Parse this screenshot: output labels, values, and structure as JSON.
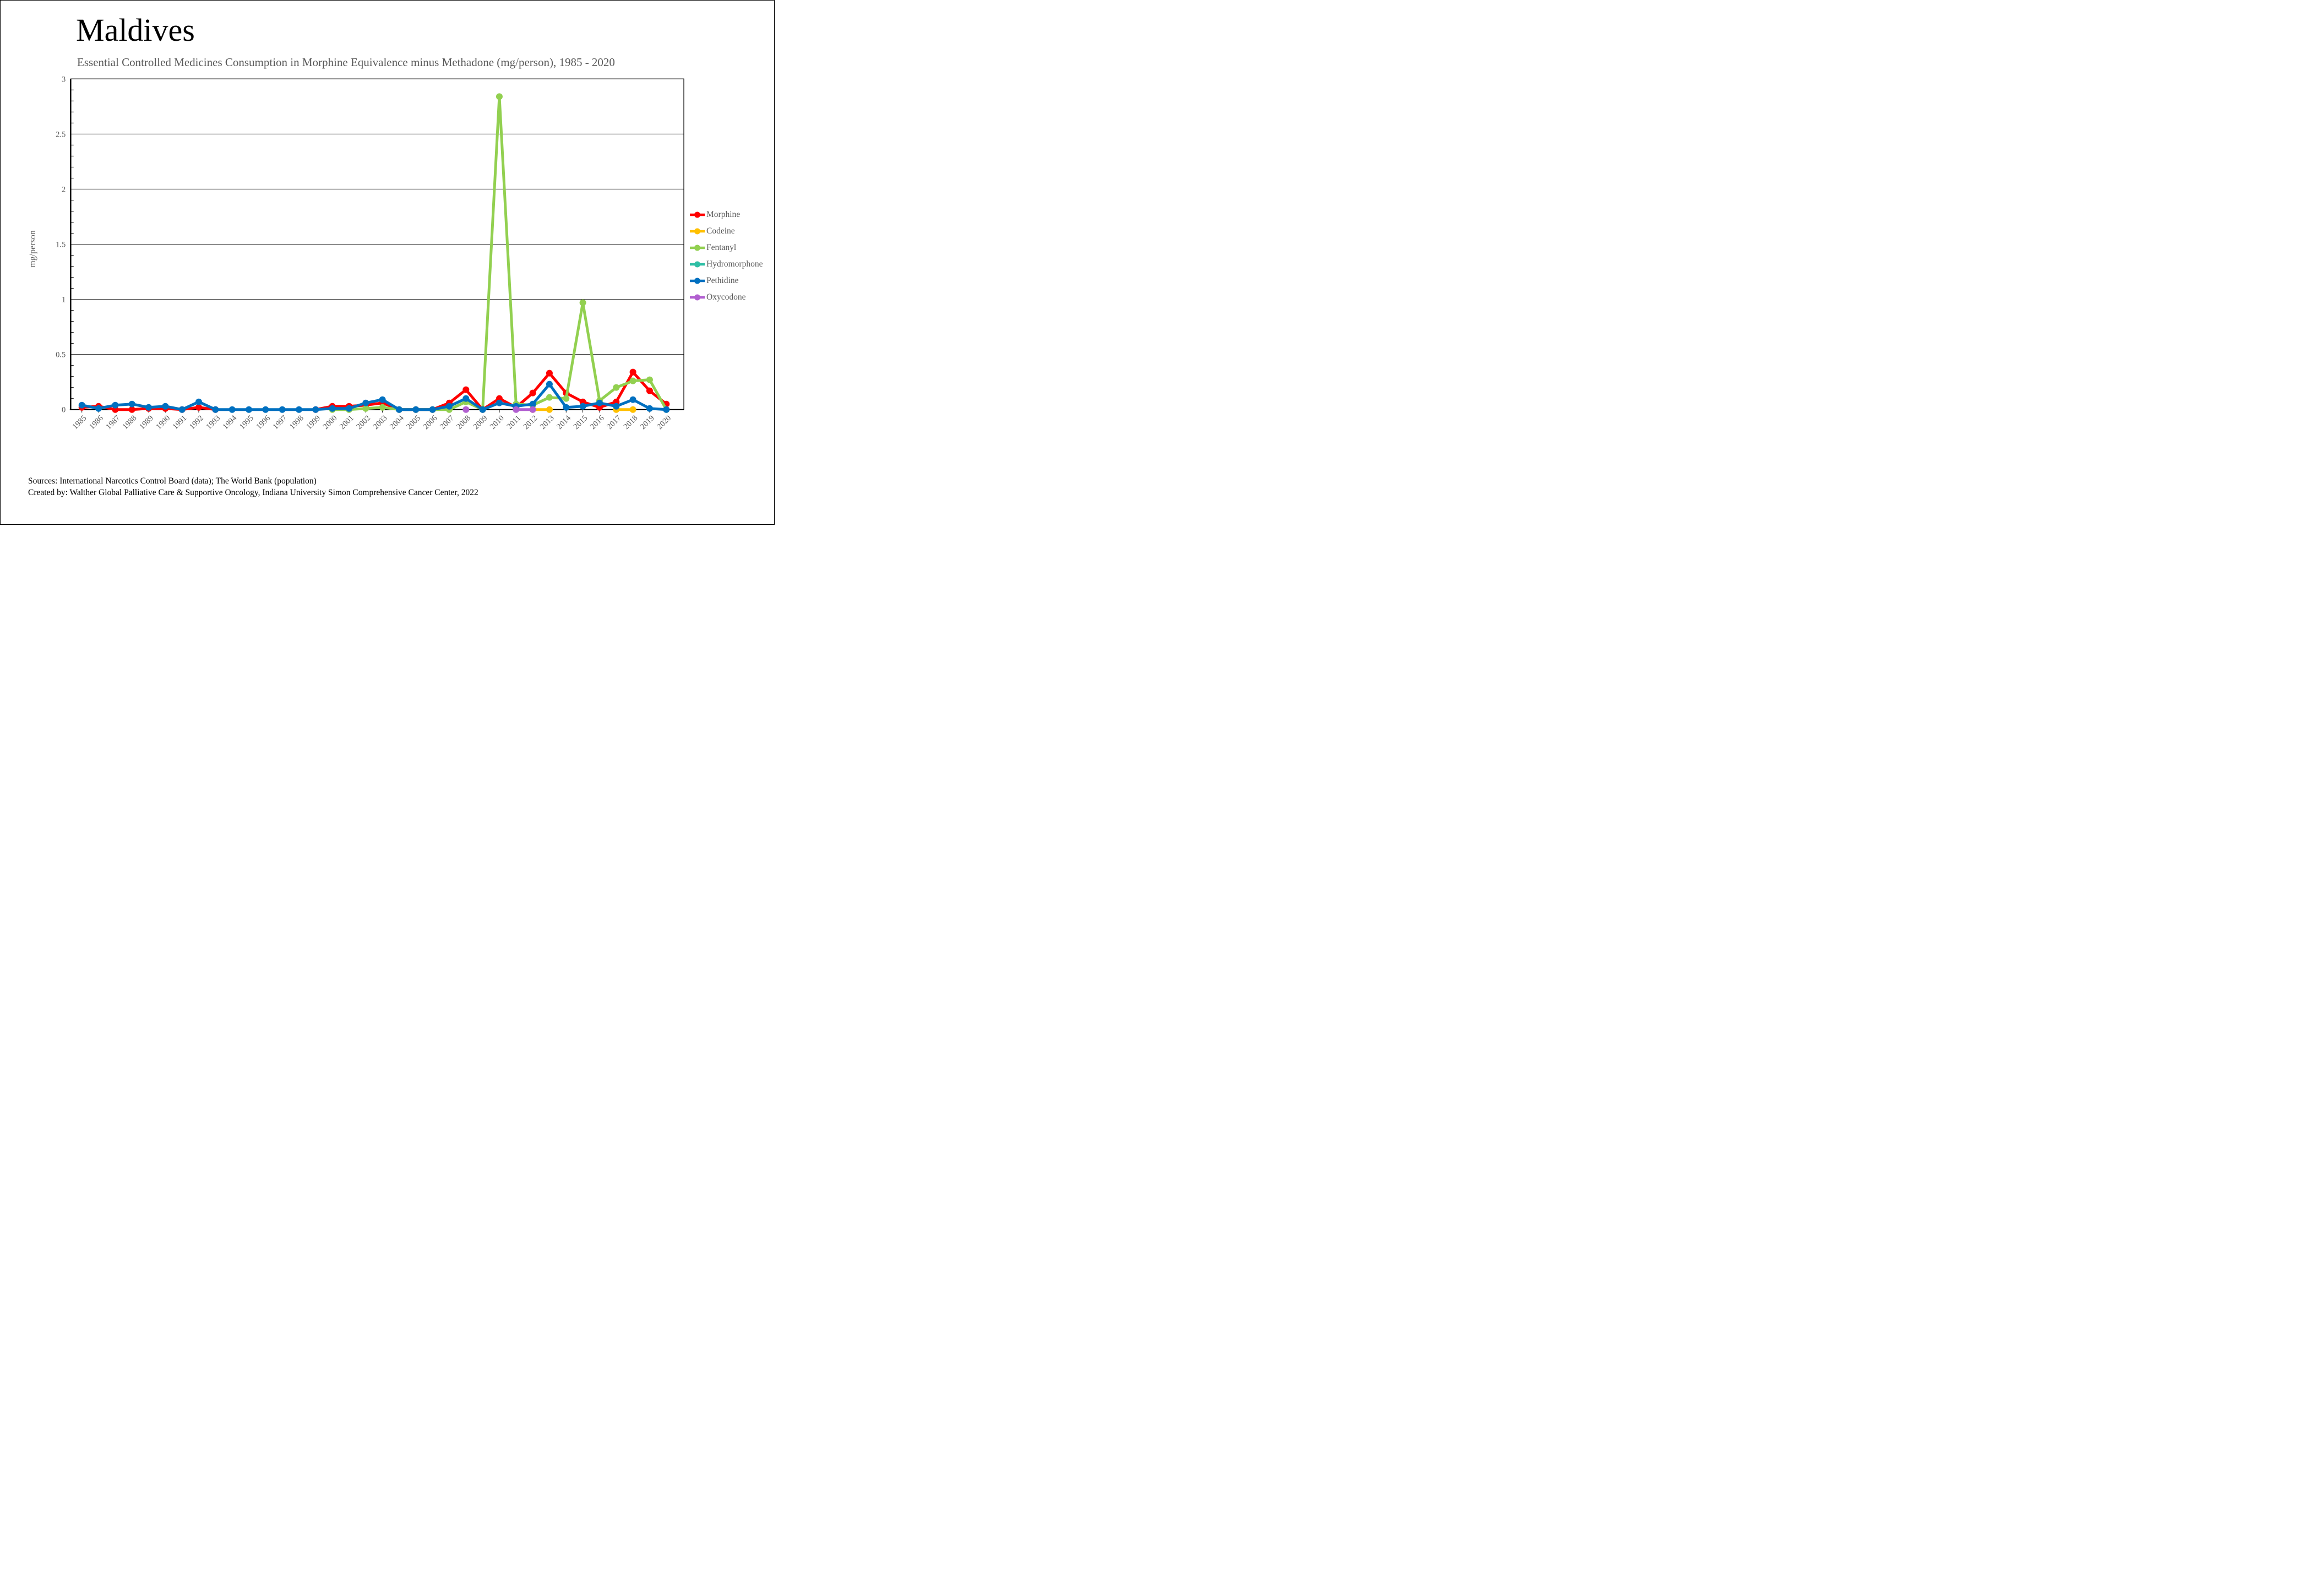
{
  "page": {
    "title": "Maldives",
    "subtitle": "Essential Controlled Medicines Consumption in Morphine Equivalence minus Methadone (mg/person), 1985 - 2020",
    "source_line1": "Sources: International Narcotics Control Board (data); The World Bank (population)",
    "source_line2": "Created by: Walther Global Palliative Care & Supportive Oncology, Indiana University Simon Comprehensive Cancer Center, 2022"
  },
  "chart_data": {
    "type": "line",
    "title": "Maldives",
    "subtitle": "Essential Controlled Medicines Consumption in Morphine Equivalence minus Methadone (mg/person), 1985 - 2020",
    "xlabel": "",
    "ylabel": "mg/person",
    "ylim": [
      0,
      3
    ],
    "ytick_major": 0.5,
    "ytick_minor": 0.1,
    "grid": "horizontal-major",
    "legend_position": "right",
    "axis_text_color": "#595959",
    "x": [
      1985,
      1986,
      1987,
      1988,
      1989,
      1990,
      1991,
      1992,
      1993,
      1994,
      1995,
      1996,
      1997,
      1998,
      1999,
      2000,
      2001,
      2002,
      2003,
      2004,
      2005,
      2006,
      2007,
      2008,
      2009,
      2010,
      2011,
      2012,
      2013,
      2014,
      2015,
      2016,
      2017,
      2018,
      2019,
      2020
    ],
    "series": [
      {
        "name": "Morphine",
        "color": "#FF0000",
        "values": [
          0.02,
          0.03,
          0,
          0,
          0.01,
          0.01,
          0,
          0.02,
          0,
          null,
          null,
          null,
          null,
          null,
          0,
          0.03,
          0.03,
          0.04,
          0.06,
          0,
          0,
          0,
          0.06,
          0.18,
          0,
          0.1,
          0.02,
          0.15,
          0.33,
          0.15,
          0.07,
          0.02,
          0.07,
          0.34,
          0.17,
          0.05
        ]
      },
      {
        "name": "Codeine",
        "color": "#FFC000",
        "values": [
          null,
          null,
          null,
          null,
          null,
          null,
          null,
          null,
          null,
          null,
          null,
          null,
          null,
          null,
          null,
          null,
          null,
          null,
          null,
          null,
          null,
          null,
          null,
          null,
          null,
          null,
          null,
          0,
          0,
          null,
          null,
          null,
          0,
          0,
          null,
          null
        ]
      },
      {
        "name": "Fentanyl",
        "color": "#92D050",
        "values": [
          null,
          null,
          null,
          null,
          null,
          null,
          null,
          null,
          null,
          null,
          null,
          null,
          null,
          null,
          null,
          0,
          0,
          0.01,
          0.02,
          0,
          0,
          0,
          0,
          0.07,
          0,
          2.84,
          0.05,
          0.04,
          0.11,
          0.1,
          0.97,
          0.08,
          0.2,
          0.26,
          0.27,
          0
        ]
      },
      {
        "name": "Hydromorphone",
        "color": "#2EBFA5",
        "values": [
          null,
          null,
          null,
          null,
          null,
          null,
          null,
          null,
          null,
          null,
          null,
          null,
          null,
          null,
          null,
          null,
          null,
          null,
          null,
          null,
          null,
          null,
          null,
          null,
          null,
          null,
          null,
          null,
          null,
          null,
          null,
          null,
          null,
          null,
          null,
          null
        ]
      },
      {
        "name": "Pethidine",
        "color": "#0070C0",
        "values": [
          0.04,
          0.01,
          0.04,
          0.05,
          0.02,
          0.03,
          0,
          0.07,
          0,
          0,
          0,
          0,
          0,
          0,
          0,
          0.01,
          0.01,
          0.06,
          0.09,
          0,
          0,
          0,
          0.03,
          0.1,
          0,
          0.06,
          0.03,
          0.05,
          0.23,
          0.02,
          0.03,
          0.06,
          0.03,
          0.09,
          0.01,
          0
        ]
      },
      {
        "name": "Oxycodone",
        "color": "#B15FD0",
        "values": [
          null,
          null,
          null,
          null,
          null,
          null,
          null,
          null,
          null,
          null,
          null,
          null,
          null,
          null,
          null,
          null,
          null,
          null,
          null,
          null,
          null,
          null,
          null,
          0,
          null,
          null,
          0,
          0,
          null,
          null,
          null,
          null,
          null,
          null,
          null,
          null
        ]
      }
    ]
  }
}
